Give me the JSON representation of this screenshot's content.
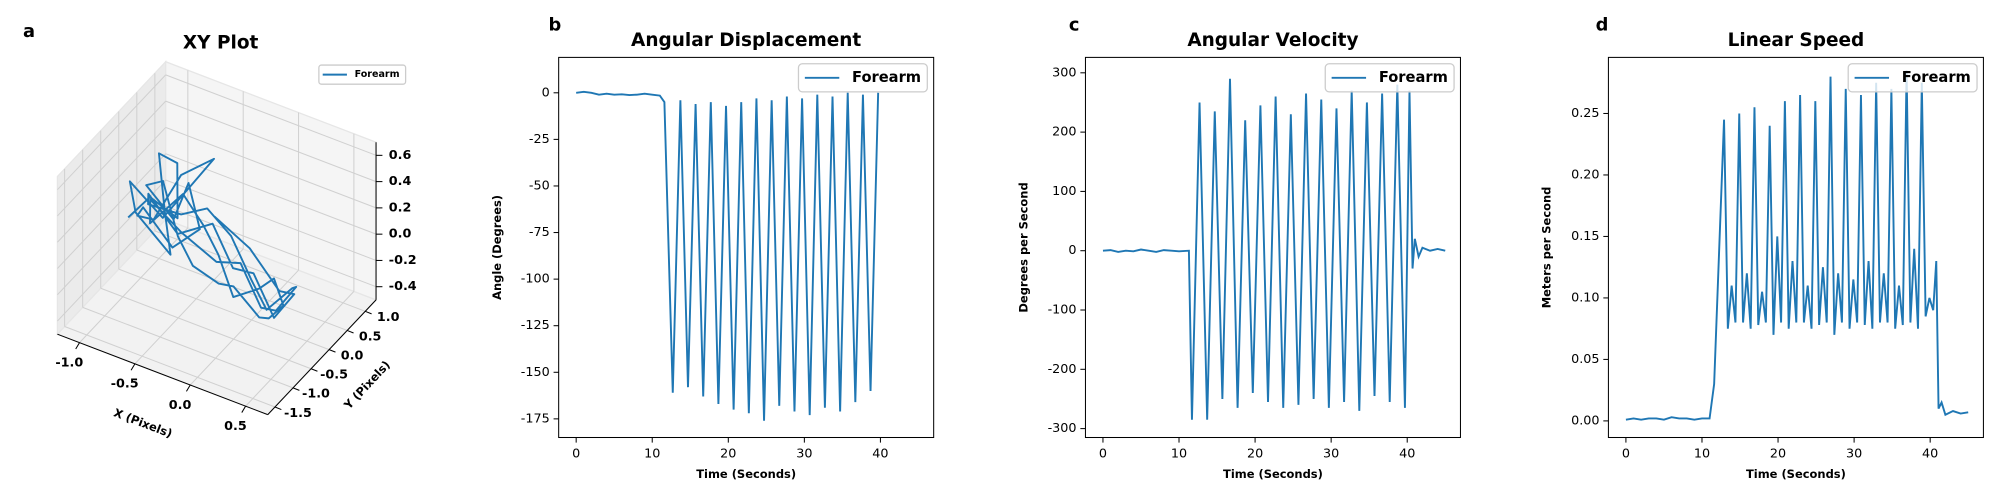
{
  "chart_data": [
    {
      "type": "line3d",
      "panel_label": "a",
      "title": "XY Plot",
      "xlabel": "X (Pixels)",
      "ylabel": "Y (Pixels)",
      "xlim": [
        -1.2,
        0.7
      ],
      "ylim": [
        -1.7,
        1.3
      ],
      "zlim": [
        -0.5,
        0.7
      ],
      "xticks": [
        {
          "value": -1,
          "label": "-1.0"
        },
        {
          "value": -0.5,
          "label": "-0.5"
        },
        {
          "value": 0,
          "label": "0.0"
        },
        {
          "value": 0.5,
          "label": "0.5"
        }
      ],
      "yticks": [
        {
          "value": -1.5,
          "label": "-1.5"
        },
        {
          "value": -1,
          "label": "-1.0"
        },
        {
          "value": -0.5,
          "label": "-0.5"
        },
        {
          "value": 0,
          "label": "0.0"
        },
        {
          "value": 0.5,
          "label": "0.5"
        },
        {
          "value": 1,
          "label": "1.0"
        }
      ],
      "zticks": [
        {
          "value": -0.4,
          "label": "-0.4"
        },
        {
          "value": -0.2,
          "label": "-0.2"
        },
        {
          "value": 0,
          "label": "0.0"
        },
        {
          "value": 0.2,
          "label": "0.2"
        },
        {
          "value": 0.4,
          "label": "0.4"
        },
        {
          "value": 0.6,
          "label": "0.6"
        }
      ],
      "series": [
        {
          "name": "Forearm",
          "color": "#1f77b4",
          "x": [
            -1.05,
            -0.95,
            -0.8,
            -0.9,
            -1.0,
            -0.85,
            -0.7,
            -0.95,
            -1.1,
            -0.9,
            -0.75,
            -0.6,
            -0.8,
            -0.95,
            -1.0,
            -0.85,
            -0.65,
            -0.5,
            -0.7,
            -0.9,
            -1.05,
            -0.8,
            -0.6,
            -0.4,
            -0.2,
            0.0,
            0.2,
            0.35,
            0.45,
            0.3,
            0.1,
            -0.1,
            -0.3,
            -0.5,
            -0.75,
            -0.95,
            -0.85,
            -0.6,
            -0.35,
            -0.1,
            0.15,
            0.35,
            0.5,
            0.4,
            0.2,
            0.0,
            -0.25,
            -0.5,
            -0.8,
            -1.0,
            -0.9,
            -0.7,
            -0.45,
            -0.2,
            0.05,
            0.3,
            0.45,
            0.25,
            -0.05,
            -0.4
          ],
          "y": [
            -0.2,
            0.1,
            0.4,
            0.7,
            0.5,
            0.2,
            -0.1,
            -0.3,
            0.0,
            0.3,
            0.6,
            0.8,
            0.5,
            0.2,
            -0.1,
            -0.4,
            -0.2,
            0.1,
            0.4,
            0.6,
            0.3,
            0.0,
            -0.2,
            -0.4,
            -0.3,
            -0.5,
            -0.4,
            -0.6,
            -0.5,
            -0.3,
            -0.1,
            -0.2,
            0.0,
            0.2,
            0.4,
            0.1,
            -0.2,
            -0.1,
            0.1,
            0.0,
            -0.2,
            -0.4,
            -0.3,
            -0.1,
            -0.2,
            0.0,
            0.2,
            0.3,
            0.5,
            0.2,
            -0.1,
            0.1,
            0.3,
            0.1,
            -0.1,
            -0.3,
            -0.2,
            0.0,
            0.1,
            0.2
          ],
          "z": [
            0.0,
            0.1,
            -0.1,
            0.2,
            0.3,
            0.0,
            -0.2,
            0.1,
            0.2,
            -0.1,
            0.1,
            0.3,
            0.2,
            -0.1,
            0.0,
            0.2,
            -0.1,
            0.0,
            0.2,
            -0.2,
            0.1,
            0.3,
            0.0,
            -0.1,
            -0.2,
            -0.1,
            -0.3,
            -0.2,
            -0.1,
            0.0,
            -0.2,
            -0.3,
            -0.1,
            0.0,
            0.1,
            -0.1,
            0.2,
            0.0,
            -0.2,
            -0.1,
            -0.3,
            -0.2,
            0.0,
            -0.1,
            -0.3,
            -0.2,
            0.0,
            0.1,
            -0.1,
            0.0,
            0.2,
            -0.1,
            0.0,
            -0.2,
            -0.1,
            -0.3,
            -0.1,
            -0.2,
            0.0,
            0.1
          ]
        }
      ]
    },
    {
      "type": "line",
      "panel_label": "b",
      "title": "Angular Displacement",
      "xlabel": "Time (Seconds)",
      "ylabel": "Angle (Degrees)",
      "xlim": [
        -2.3,
        47
      ],
      "ylim": [
        -185,
        19
      ],
      "xticks": [
        0,
        10,
        20,
        30,
        40
      ],
      "yticks": [
        0,
        -25,
        -50,
        -75,
        -100,
        -125,
        -150,
        -175
      ],
      "series": [
        {
          "name": "Forearm",
          "color": "#1f77b4",
          "x": [
            0,
            1,
            2,
            3,
            4,
            5,
            6,
            7,
            8,
            9,
            10,
            11,
            11.6,
            12.7,
            13.7,
            14.7,
            15.7,
            16.7,
            17.7,
            18.7,
            19.7,
            20.7,
            21.7,
            22.7,
            23.7,
            24.7,
            25.7,
            26.7,
            27.7,
            28.7,
            29.7,
            30.7,
            31.7,
            32.7,
            33.7,
            34.7,
            35.7,
            36.7,
            37.7,
            38.7,
            39.7
          ],
          "values": [
            0,
            0.5,
            0,
            -1,
            -0.5,
            -1,
            -0.8,
            -1.2,
            -1,
            -0.5,
            -1,
            -1.5,
            -5,
            -161,
            -4,
            -158,
            -6,
            -163,
            -5,
            -167,
            -7,
            -170,
            -5,
            -172,
            -3,
            -176,
            -4,
            -168,
            -2,
            -171,
            -3,
            -173,
            -1,
            -169,
            -2,
            -171,
            0,
            -166,
            -1,
            -160,
            0
          ]
        }
      ]
    },
    {
      "type": "line",
      "panel_label": "c",
      "title": "Angular Velocity",
      "xlabel": "Time (Seconds)",
      "ylabel": "Degrees per Second",
      "xlim": [
        -2.3,
        47
      ],
      "ylim": [
        -315,
        326
      ],
      "xticks": [
        0,
        10,
        20,
        30,
        40
      ],
      "yticks": [
        300,
        200,
        100,
        0,
        -100,
        -200,
        -300
      ],
      "series": [
        {
          "name": "Forearm",
          "color": "#1f77b4",
          "x": [
            0,
            1,
            2,
            3,
            4,
            5,
            6,
            7,
            8,
            9,
            10,
            11.3,
            11.7,
            12.7,
            13.7,
            14.7,
            15.7,
            16.7,
            17.7,
            18.7,
            19.7,
            20.7,
            21.7,
            22.7,
            23.7,
            24.7,
            25.7,
            26.7,
            27.7,
            28.7,
            29.7,
            30.7,
            31.7,
            32.7,
            33.7,
            34.7,
            35.7,
            36.7,
            37.7,
            38.7,
            39.7,
            40.3,
            40.7,
            41,
            41.5,
            42,
            43,
            44,
            45
          ],
          "values": [
            0,
            1,
            -2,
            0,
            -1,
            2,
            0,
            -2,
            1,
            0,
            -1,
            0,
            -285,
            250,
            -285,
            235,
            -250,
            290,
            -265,
            220,
            -240,
            245,
            -255,
            260,
            -265,
            230,
            -260,
            265,
            -250,
            255,
            -265,
            240,
            -255,
            270,
            -270,
            250,
            -245,
            265,
            -255,
            280,
            -265,
            270,
            -30,
            20,
            -10,
            5,
            0,
            3,
            0
          ]
        }
      ]
    },
    {
      "type": "line",
      "panel_label": "d",
      "title": "Linear Speed",
      "xlabel": "Time (Seconds)",
      "ylabel": "Meters per Second",
      "xlim": [
        -2.3,
        47
      ],
      "ylim": [
        -0.0135,
        0.2956
      ],
      "xticks": [
        0,
        10,
        20,
        30,
        40
      ],
      "yticks": [
        {
          "value": 0,
          "label": "0.00"
        },
        {
          "value": 0.05,
          "label": "0.05"
        },
        {
          "value": 0.1,
          "label": "0.10"
        },
        {
          "value": 0.15,
          "label": "0.15"
        },
        {
          "value": 0.2,
          "label": "0.20"
        },
        {
          "value": 0.25,
          "label": "0.25"
        }
      ],
      "series": [
        {
          "name": "Forearm",
          "color": "#1f77b4",
          "x": [
            0,
            1,
            2,
            3,
            4,
            5,
            6,
            7,
            8,
            9,
            10,
            11,
            11.6,
            12.9,
            13.4,
            13.9,
            14.4,
            14.9,
            15.4,
            15.9,
            16.4,
            16.9,
            17.4,
            17.9,
            18.4,
            18.9,
            19.4,
            19.9,
            20.4,
            20.9,
            21.4,
            21.9,
            22.4,
            22.9,
            23.4,
            23.9,
            24.4,
            24.9,
            25.4,
            25.9,
            26.4,
            26.9,
            27.4,
            27.9,
            28.4,
            28.9,
            29.4,
            29.9,
            30.4,
            30.9,
            31.4,
            31.9,
            32.4,
            32.9,
            33.4,
            33.9,
            34.4,
            34.9,
            35.4,
            35.9,
            36.4,
            36.9,
            37.4,
            37.9,
            38.4,
            38.9,
            39.4,
            39.9,
            40.4,
            40.8,
            41.1,
            41.5,
            42,
            43,
            44,
            45
          ],
          "values": [
            0.001,
            0.002,
            0.001,
            0.002,
            0.002,
            0.001,
            0.003,
            0.002,
            0.002,
            0.001,
            0.002,
            0.002,
            0.03,
            0.245,
            0.075,
            0.11,
            0.08,
            0.25,
            0.08,
            0.12,
            0.075,
            0.255,
            0.078,
            0.105,
            0.08,
            0.24,
            0.07,
            0.15,
            0.08,
            0.26,
            0.075,
            0.13,
            0.08,
            0.265,
            0.08,
            0.11,
            0.075,
            0.26,
            0.078,
            0.125,
            0.08,
            0.28,
            0.07,
            0.12,
            0.08,
            0.27,
            0.075,
            0.115,
            0.08,
            0.265,
            0.078,
            0.13,
            0.075,
            0.275,
            0.08,
            0.12,
            0.08,
            0.27,
            0.075,
            0.11,
            0.078,
            0.285,
            0.08,
            0.14,
            0.075,
            0.275,
            0.085,
            0.1,
            0.09,
            0.13,
            0.01,
            0.015,
            0.005,
            0.008,
            0.006,
            0.007
          ]
        }
      ]
    }
  ]
}
